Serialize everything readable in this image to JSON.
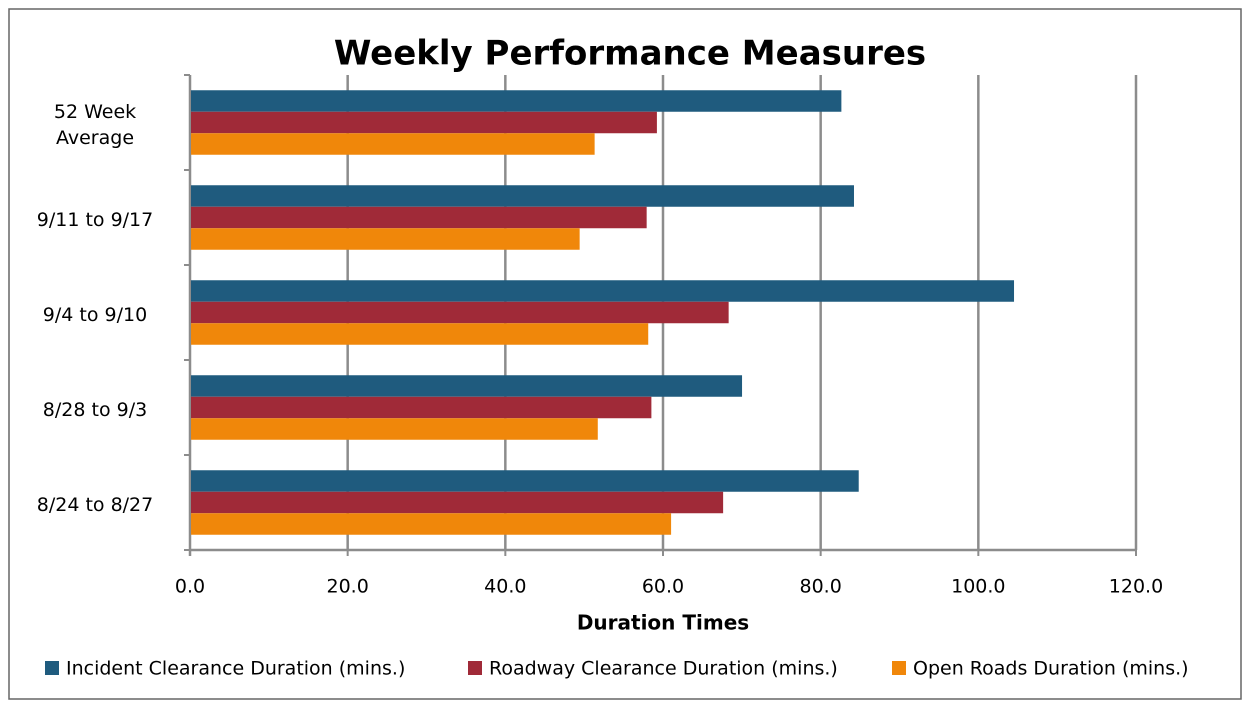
{
  "chart_data": {
    "type": "hbar",
    "title": "Weekly Performance Measures",
    "xlabel": "Duration Times",
    "categories": [
      "52 Week Average",
      "9/11 to 9/17",
      "9/4 to 9/10",
      "8/28 to 9/3",
      "8/24 to 8/27"
    ],
    "series": [
      {
        "name": "Incident Clearance Duration (mins.)",
        "color": "#1f5b7e",
        "values": [
          82.5,
          84.1,
          104.4,
          69.9,
          84.7
        ]
      },
      {
        "name": "Roadway Clearance Duration (mins.)",
        "color": "#a02a38",
        "values": [
          59.1,
          57.8,
          68.2,
          58.4,
          67.5
        ]
      },
      {
        "name": "Open Roads Duration (mins.)",
        "color": "#f0870a",
        "values": [
          51.2,
          49.3,
          58.0,
          51.6,
          60.9
        ]
      }
    ],
    "xlim": [
      0,
      120
    ],
    "xticks": [
      {
        "value": 0,
        "label": "0.0"
      },
      {
        "value": 20,
        "label": "20.0"
      },
      {
        "value": 40,
        "label": "40.0"
      },
      {
        "value": 60,
        "label": "60.0"
      },
      {
        "value": 80,
        "label": "80.0"
      },
      {
        "value": 100,
        "label": "100.0"
      },
      {
        "value": 120,
        "label": "120.0"
      }
    ],
    "grid": true,
    "legend": "bottom"
  }
}
